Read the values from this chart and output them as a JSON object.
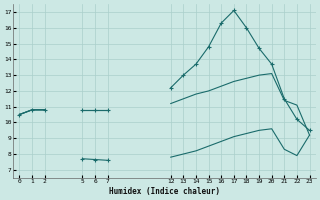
{
  "xlabel": "Humidex (Indice chaleur)",
  "bg_color": "#cce8e4",
  "grid_color": "#aacfcb",
  "line_color": "#1a6b6b",
  "xtick_positions": [
    0,
    1,
    2,
    5,
    6,
    7,
    12,
    13,
    14,
    15,
    16,
    17,
    18,
    19,
    20,
    21,
    22,
    23
  ],
  "xtick_labels": [
    "0",
    "1",
    "2",
    "5",
    "6",
    "7",
    "12",
    "13",
    "14",
    "15",
    "16",
    "17",
    "18",
    "19",
    "20",
    "21",
    "22",
    "23"
  ],
  "yticks": [
    7,
    8,
    9,
    10,
    11,
    12,
    13,
    14,
    15,
    16,
    17
  ],
  "ylim": [
    6.5,
    17.5
  ],
  "series_max": {
    "x": [
      0,
      1,
      2,
      5,
      6,
      7,
      12,
      13,
      14,
      15,
      16,
      17,
      18,
      19,
      20,
      21,
      22,
      23
    ],
    "y": [
      10.5,
      10.8,
      10.8,
      10.8,
      10.8,
      10.8,
      12.2,
      13.0,
      13.7,
      14.8,
      16.3,
      17.1,
      16.0,
      14.7,
      13.7,
      11.5,
      10.2,
      9.5
    ]
  },
  "series_mean": {
    "x": [
      0,
      1,
      2,
      5,
      6,
      7,
      12,
      13,
      14,
      15,
      16,
      17,
      18,
      19,
      20,
      21,
      22,
      23
    ],
    "y": [
      10.5,
      10.8,
      10.8,
      10.8,
      10.8,
      10.8,
      11.2,
      11.5,
      11.8,
      12.0,
      12.3,
      12.6,
      12.8,
      13.0,
      13.1,
      11.4,
      11.1,
      9.2
    ]
  },
  "series_min": {
    "x": [
      0,
      1,
      2,
      5,
      6,
      7,
      12,
      13,
      14,
      15,
      16,
      17,
      18,
      19,
      20,
      21,
      22,
      23
    ],
    "y": [
      10.5,
      10.8,
      10.8,
      7.7,
      7.65,
      7.6,
      7.8,
      8.0,
      8.2,
      8.5,
      8.8,
      9.1,
      9.3,
      9.5,
      9.6,
      8.3,
      7.9,
      9.2
    ]
  },
  "markers_max": {
    "x": [
      0,
      1,
      2,
      5,
      6,
      7,
      12,
      13,
      14,
      15,
      16,
      17,
      18,
      19,
      20,
      21,
      22,
      23
    ],
    "y": [
      10.5,
      10.8,
      10.8,
      10.8,
      10.8,
      10.8,
      12.2,
      13.0,
      13.7,
      14.8,
      16.3,
      17.1,
      16.0,
      14.7,
      13.7,
      11.5,
      10.2,
      9.5
    ]
  },
  "markers_min": {
    "x": [
      5,
      6,
      7
    ],
    "y": [
      7.7,
      7.65,
      7.6
    ]
  }
}
